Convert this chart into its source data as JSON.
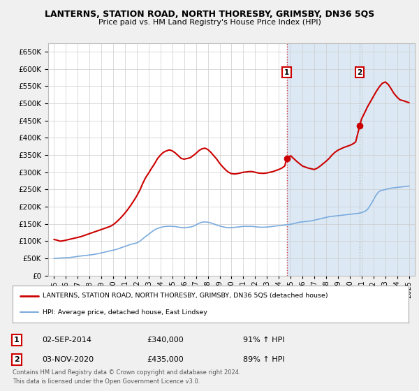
{
  "title": "LANTERNS, STATION ROAD, NORTH THORESBY, GRIMSBY, DN36 5QS",
  "subtitle": "Price paid vs. HM Land Registry's House Price Index (HPI)",
  "legend_line1": "LANTERNS, STATION ROAD, NORTH THORESBY, GRIMSBY, DN36 5QS (detached house)",
  "legend_line2": "HPI: Average price, detached house, East Lindsey",
  "footer1": "Contains HM Land Registry data © Crown copyright and database right 2024.",
  "footer2": "This data is licensed under the Open Government Licence v3.0.",
  "annotation1": {
    "label": "1",
    "date": "02-SEP-2014",
    "price": "£340,000",
    "pct": "91% ↑ HPI"
  },
  "annotation2": {
    "label": "2",
    "date": "03-NOV-2020",
    "price": "£435,000",
    "pct": "89% ↑ HPI"
  },
  "sale1_x": 2014.67,
  "sale1_y": 340000,
  "sale2_x": 2020.84,
  "sale2_y": 435000,
  "ylim": [
    0,
    675000
  ],
  "xlim_start": 1994.5,
  "xlim_end": 2025.5,
  "red_color": "#cc0000",
  "blue_color": "#7aaadd",
  "bg_color": "#f0f0f0",
  "plot_bg": "#ffffff",
  "sale_bg": "#dce9f5",
  "yticks": [
    0,
    50000,
    100000,
    150000,
    200000,
    250000,
    300000,
    350000,
    400000,
    450000,
    500000,
    550000,
    600000,
    650000
  ],
  "xticks": [
    1995,
    1996,
    1997,
    1998,
    1999,
    2000,
    2001,
    2002,
    2003,
    2004,
    2005,
    2006,
    2007,
    2008,
    2009,
    2010,
    2011,
    2012,
    2013,
    2014,
    2015,
    2016,
    2017,
    2018,
    2019,
    2020,
    2021,
    2022,
    2023,
    2024,
    2025
  ],
  "hpi_years": [
    1995,
    1995.25,
    1995.5,
    1995.75,
    1996,
    1996.25,
    1996.5,
    1996.75,
    1997,
    1997.25,
    1997.5,
    1997.75,
    1998,
    1998.25,
    1998.5,
    1998.75,
    1999,
    1999.25,
    1999.5,
    1999.75,
    2000,
    2000.25,
    2000.5,
    2000.75,
    2001,
    2001.25,
    2001.5,
    2001.75,
    2002,
    2002.25,
    2002.5,
    2002.75,
    2003,
    2003.25,
    2003.5,
    2003.75,
    2004,
    2004.25,
    2004.5,
    2004.75,
    2005,
    2005.25,
    2005.5,
    2005.75,
    2006,
    2006.25,
    2006.5,
    2006.75,
    2007,
    2007.25,
    2007.5,
    2007.75,
    2008,
    2008.25,
    2008.5,
    2008.75,
    2009,
    2009.25,
    2009.5,
    2009.75,
    2010,
    2010.25,
    2010.5,
    2010.75,
    2011,
    2011.25,
    2011.5,
    2011.75,
    2012,
    2012.25,
    2012.5,
    2012.75,
    2013,
    2013.25,
    2013.5,
    2013.75,
    2014,
    2014.25,
    2014.5,
    2014.75,
    2015,
    2015.25,
    2015.5,
    2015.75,
    2016,
    2016.25,
    2016.5,
    2016.75,
    2017,
    2017.25,
    2017.5,
    2017.75,
    2018,
    2018.25,
    2018.5,
    2018.75,
    2019,
    2019.25,
    2019.5,
    2019.75,
    2020,
    2020.25,
    2020.5,
    2020.75,
    2021,
    2021.25,
    2021.5,
    2021.75,
    2022,
    2022.25,
    2022.5,
    2022.75,
    2023,
    2023.25,
    2023.5,
    2023.75,
    2024,
    2024.25,
    2024.5,
    2024.75,
    2025
  ],
  "hpi_vals": [
    50000,
    50500,
    51000,
    51500,
    52000,
    52500,
    53500,
    54500,
    56000,
    57000,
    58000,
    59000,
    60000,
    61000,
    62500,
    64000,
    66000,
    68000,
    70000,
    72000,
    74000,
    76000,
    79000,
    82000,
    85000,
    88000,
    91000,
    93000,
    95000,
    100000,
    107000,
    114000,
    120000,
    127000,
    133000,
    137000,
    140000,
    142000,
    143000,
    143500,
    143000,
    142500,
    141000,
    139500,
    139000,
    140000,
    141000,
    143000,
    147000,
    152000,
    155000,
    156000,
    155000,
    153000,
    150000,
    147000,
    144000,
    142000,
    140000,
    139000,
    139500,
    140000,
    141000,
    142000,
    143000,
    143000,
    143000,
    143000,
    142000,
    141000,
    140500,
    140500,
    141000,
    142000,
    143000,
    144000,
    145000,
    146000,
    147000,
    148000,
    149000,
    151000,
    153000,
    155000,
    156000,
    157000,
    158000,
    159000,
    161000,
    163000,
    165000,
    167000,
    169000,
    171000,
    172000,
    173000,
    174000,
    175000,
    176000,
    177000,
    178000,
    179000,
    180000,
    181000,
    183000,
    186000,
    192000,
    205000,
    220000,
    235000,
    245000,
    248000,
    250000,
    252000,
    254000,
    255000,
    256000,
    257000,
    258000,
    259000,
    260000
  ],
  "prop_years": [
    1995,
    1995.25,
    1995.5,
    1995.75,
    1996,
    1996.25,
    1996.5,
    1996.75,
    1997,
    1997.25,
    1997.5,
    1997.75,
    1998,
    1998.25,
    1998.5,
    1998.75,
    1999,
    1999.25,
    1999.5,
    1999.75,
    2000,
    2000.25,
    2000.5,
    2000.75,
    2001,
    2001.25,
    2001.5,
    2001.75,
    2002,
    2002.25,
    2002.5,
    2002.75,
    2003,
    2003.25,
    2003.5,
    2003.75,
    2004,
    2004.25,
    2004.5,
    2004.75,
    2005,
    2005.25,
    2005.5,
    2005.75,
    2006,
    2006.25,
    2006.5,
    2006.75,
    2007,
    2007.25,
    2007.5,
    2007.75,
    2008,
    2008.25,
    2008.5,
    2008.75,
    2009,
    2009.25,
    2009.5,
    2009.75,
    2010,
    2010.25,
    2010.5,
    2010.75,
    2011,
    2011.25,
    2011.5,
    2011.75,
    2012,
    2012.25,
    2012.5,
    2012.75,
    2013,
    2013.25,
    2013.5,
    2013.75,
    2014,
    2014.25,
    2014.5,
    2014.67,
    2015,
    2015.25,
    2015.5,
    2015.75,
    2016,
    2016.25,
    2016.5,
    2016.75,
    2017,
    2017.25,
    2017.5,
    2017.75,
    2018,
    2018.25,
    2018.5,
    2018.75,
    2019,
    2019.25,
    2019.5,
    2019.75,
    2020,
    2020.25,
    2020.5,
    2020.84,
    2021,
    2021.25,
    2021.5,
    2021.75,
    2022,
    2022.25,
    2022.5,
    2022.75,
    2023,
    2023.25,
    2023.5,
    2023.75,
    2024,
    2024.25,
    2024.5,
    2024.75,
    2025
  ],
  "prop_vals": [
    105000,
    103000,
    100000,
    101000,
    103000,
    105000,
    107000,
    109000,
    111000,
    113000,
    116000,
    119000,
    122000,
    125000,
    128000,
    131000,
    134000,
    137000,
    140000,
    143000,
    148000,
    155000,
    163000,
    172000,
    182000,
    193000,
    205000,
    218000,
    232000,
    248000,
    268000,
    285000,
    298000,
    312000,
    325000,
    340000,
    350000,
    358000,
    362000,
    365000,
    362000,
    356000,
    348000,
    340000,
    338000,
    340000,
    342000,
    348000,
    355000,
    363000,
    368000,
    370000,
    366000,
    358000,
    348000,
    338000,
    326000,
    316000,
    307000,
    300000,
    296000,
    295000,
    296000,
    298000,
    300000,
    301000,
    302000,
    302000,
    300000,
    298000,
    297000,
    297000,
    298000,
    300000,
    302000,
    305000,
    308000,
    312000,
    318000,
    340000,
    348000,
    340000,
    332000,
    325000,
    318000,
    315000,
    312000,
    310000,
    308000,
    312000,
    318000,
    325000,
    332000,
    340000,
    350000,
    358000,
    364000,
    368000,
    372000,
    375000,
    378000,
    382000,
    388000,
    435000,
    455000,
    472000,
    490000,
    505000,
    520000,
    535000,
    548000,
    558000,
    562000,
    555000,
    542000,
    528000,
    518000,
    510000,
    508000,
    505000,
    502000
  ]
}
